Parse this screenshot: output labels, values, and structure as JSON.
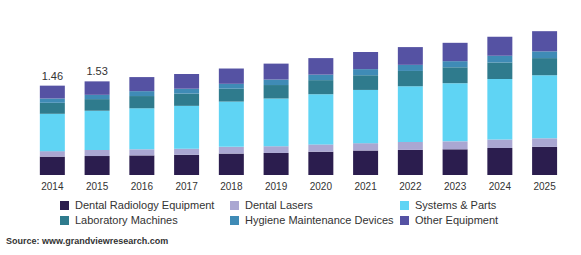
{
  "chart_data": {
    "type": "bar",
    "stacked": true,
    "categories": [
      "2014",
      "2015",
      "2016",
      "2017",
      "2018",
      "2019",
      "2020",
      "2021",
      "2022",
      "2023",
      "2024",
      "2025"
    ],
    "series": [
      {
        "name": "Dental Radiology Equipment",
        "color": "#2b1d4e",
        "values": [
          0.3,
          0.31,
          0.32,
          0.33,
          0.35,
          0.36,
          0.38,
          0.4,
          0.41,
          0.42,
          0.44,
          0.46
        ]
      },
      {
        "name": "Dental Lasers",
        "color": "#aaa7d2",
        "values": [
          0.09,
          0.1,
          0.1,
          0.1,
          0.11,
          0.11,
          0.12,
          0.12,
          0.13,
          0.13,
          0.14,
          0.14
        ]
      },
      {
        "name": "Systems & Parts",
        "color": "#5fd4f4",
        "values": [
          0.61,
          0.64,
          0.67,
          0.7,
          0.74,
          0.78,
          0.82,
          0.87,
          0.91,
          0.95,
          0.99,
          1.03
        ]
      },
      {
        "name": "Laboratory Machines",
        "color": "#2f7b8d",
        "values": [
          0.18,
          0.19,
          0.2,
          0.2,
          0.21,
          0.22,
          0.23,
          0.24,
          0.25,
          0.26,
          0.27,
          0.28
        ]
      },
      {
        "name": "Hygiene Maintenance Devices",
        "color": "#3f8bb6",
        "values": [
          0.07,
          0.07,
          0.08,
          0.08,
          0.08,
          0.09,
          0.09,
          0.1,
          0.1,
          0.1,
          0.11,
          0.11
        ]
      },
      {
        "name": "Other Equipment",
        "color": "#5552a3",
        "values": [
          0.21,
          0.22,
          0.23,
          0.24,
          0.25,
          0.26,
          0.27,
          0.28,
          0.29,
          0.3,
          0.31,
          0.33
        ]
      }
    ],
    "totals": [
      1.46,
      1.53,
      null,
      null,
      null,
      null,
      null,
      null,
      null,
      null,
      null,
      null
    ],
    "ylim": [
      0,
      2.5
    ],
    "tick_labels": "x",
    "grid": false,
    "source": "Source: www.grandviewresearch.com"
  }
}
